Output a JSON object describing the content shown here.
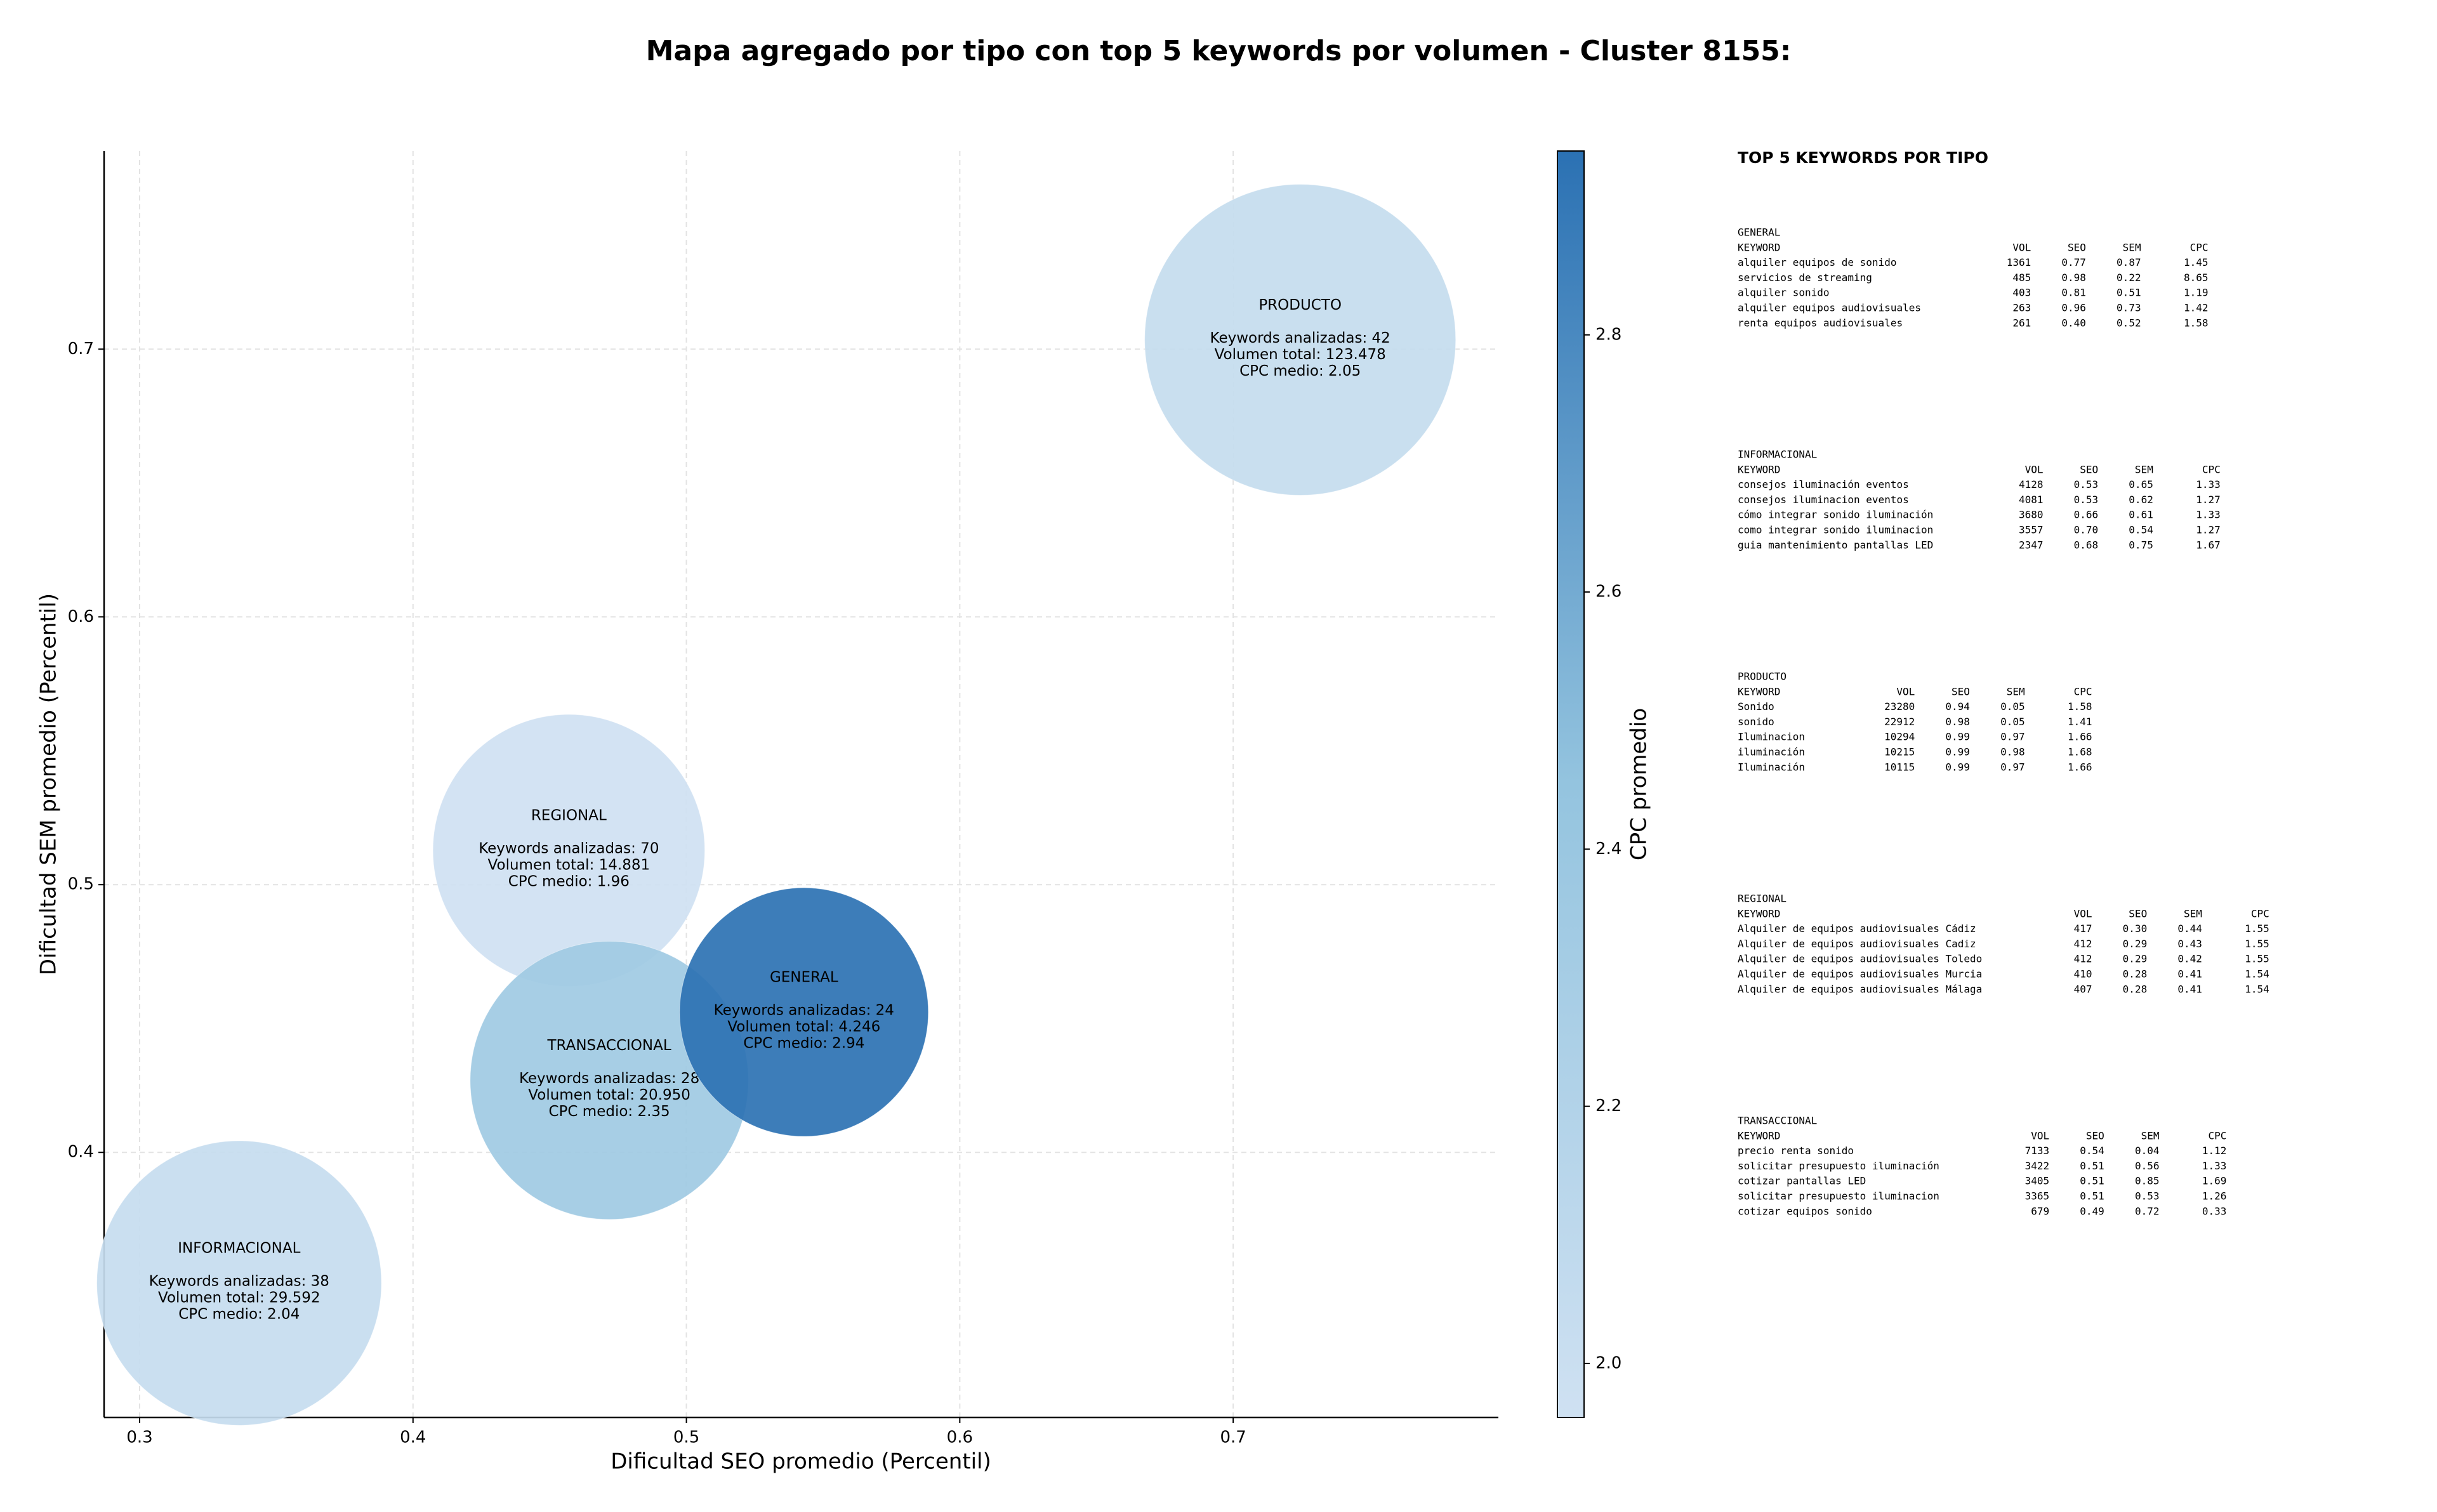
{
  "chart_data": {
    "type": "bubble",
    "title": "Mapa agregado por tipo con top 5 keywords por volumen - Cluster 8155:",
    "x_label": "Dificultad SEO promedio (Percentil)",
    "y_label": "Dificultad SEM promedio (Percentil)",
    "colorbar_label": "CPC promedio",
    "xlim": [
      0.287,
      0.797
    ],
    "xticks": [
      0.3,
      0.4,
      0.5,
      0.6,
      0.7
    ],
    "ylim": [
      0.301,
      0.774
    ],
    "yticks": [
      0.4,
      0.5,
      0.6,
      0.7
    ],
    "clim": [
      1.958,
      2.943
    ],
    "cticks": [
      {
        "value": 2,
        "label": "2.0"
      },
      2.2,
      2.4,
      2.6,
      2.8
    ],
    "colormap": [
      "#cfe1f2",
      "#94c4df",
      "#2b71b3"
    ],
    "grid": true,
    "points": [
      {
        "name": "INFORMACIONAL",
        "x": 0.3364,
        "y": 0.3512,
        "volume": 29592,
        "cpc": 2.04,
        "annotation": [
          "Keywords analizadas: 38",
          "Volumen total: 29.592",
          "CPC medio: 2.04"
        ]
      },
      {
        "name": "PRODUCTO",
        "x": 0.7245,
        "y": 0.7035,
        "volume": 123478,
        "cpc": 2.05,
        "annotation": [
          "Keywords analizadas: 42",
          "Volumen total: 123.478",
          "CPC medio: 2.05"
        ]
      },
      {
        "name": "REGIONAL",
        "x": 0.457,
        "y": 0.5128,
        "volume": 14881,
        "cpc": 1.96,
        "annotation": [
          "Keywords analizadas: 70",
          "Volumen total: 14.881",
          "CPC medio: 1.96"
        ]
      },
      {
        "name": "TRANSACCIONAL",
        "x": 0.4718,
        "y": 0.4269,
        "volume": 20950,
        "cpc": 2.35,
        "annotation": [
          "Keywords analizadas: 28",
          "Volumen total: 20.950",
          "CPC medio: 2.35"
        ]
      },
      {
        "name": "GENERAL",
        "x": 0.543,
        "y": 0.4524,
        "volume": 4246,
        "cpc": 2.94,
        "annotation": [
          "Keywords analizadas: 24",
          "Volumen total: 4.246",
          "CPC medio: 2.94"
        ]
      }
    ]
  },
  "side_panel": {
    "title": "TOP 5 KEYWORDS POR TIPO",
    "sections": [
      {
        "name": "GENERAL",
        "columns": [
          "KEYWORD",
          "VOL",
          "SEO",
          "SEM",
          "CPC"
        ],
        "rows": [
          [
            "alquiler equipos de sonido",
            "1361",
            "0.77",
            "0.87",
            "1.45"
          ],
          [
            "servicios de streaming",
            "485",
            "0.98",
            "0.22",
            "8.65"
          ],
          [
            "alquiler sonido",
            "403",
            "0.81",
            "0.51",
            "1.19"
          ],
          [
            "alquiler equipos audiovisuales",
            "263",
            "0.96",
            "0.73",
            "1.42"
          ],
          [
            "renta equipos audiovisuales",
            "261",
            "0.40",
            "0.52",
            "1.58"
          ]
        ]
      },
      {
        "name": "INFORMACIONAL",
        "columns": [
          "KEYWORD",
          "VOL",
          "SEO",
          "SEM",
          "CPC"
        ],
        "rows": [
          [
            "consejos iluminación eventos",
            "4128",
            "0.53",
            "0.65",
            "1.33"
          ],
          [
            "consejos iluminacion eventos",
            "4081",
            "0.53",
            "0.62",
            "1.27"
          ],
          [
            "cómo integrar sonido iluminación",
            "3680",
            "0.66",
            "0.61",
            "1.33"
          ],
          [
            "como integrar sonido iluminacion",
            "3557",
            "0.70",
            "0.54",
            "1.27"
          ],
          [
            "guia mantenimiento pantallas LED",
            "2347",
            "0.68",
            "0.75",
            "1.67"
          ]
        ]
      },
      {
        "name": "PRODUCTO",
        "columns": [
          "KEYWORD",
          "VOL",
          "SEO",
          "SEM",
          "CPC"
        ],
        "rows": [
          [
            "Sonido",
            "23280",
            "0.94",
            "0.05",
            "1.58"
          ],
          [
            "sonido",
            "22912",
            "0.98",
            "0.05",
            "1.41"
          ],
          [
            "Iluminacion",
            "10294",
            "0.99",
            "0.97",
            "1.66"
          ],
          [
            "iluminación",
            "10215",
            "0.99",
            "0.98",
            "1.68"
          ],
          [
            "Iluminación",
            "10115",
            "0.99",
            "0.97",
            "1.66"
          ]
        ]
      },
      {
        "name": "REGIONAL",
        "columns": [
          "KEYWORD",
          "VOL",
          "SEO",
          "SEM",
          "CPC"
        ],
        "rows": [
          [
            "Alquiler de equipos audiovisuales Cádiz",
            "417",
            "0.30",
            "0.44",
            "1.55"
          ],
          [
            "Alquiler de equipos audiovisuales Cadiz",
            "412",
            "0.29",
            "0.43",
            "1.55"
          ],
          [
            "Alquiler de equipos audiovisuales Toledo",
            "412",
            "0.29",
            "0.42",
            "1.55"
          ],
          [
            "Alquiler de equipos audiovisuales Murcia",
            "410",
            "0.28",
            "0.41",
            "1.54"
          ],
          [
            "Alquiler de equipos audiovisuales Málaga",
            "407",
            "0.28",
            "0.41",
            "1.54"
          ]
        ]
      },
      {
        "name": "TRANSACCIONAL",
        "columns": [
          "KEYWORD",
          "VOL",
          "SEO",
          "SEM",
          "CPC"
        ],
        "rows": [
          [
            "precio renta sonido",
            "7133",
            "0.54",
            "0.04",
            "1.12"
          ],
          [
            "solicitar presupuesto iluminación",
            "3422",
            "0.51",
            "0.56",
            "1.33"
          ],
          [
            "cotizar pantallas LED",
            "3405",
            "0.51",
            "0.85",
            "1.69"
          ],
          [
            "solicitar presupuesto iluminacion",
            "3365",
            "0.51",
            "0.53",
            "1.26"
          ],
          [
            "cotizar equipos sonido",
            "679",
            "0.49",
            "0.72",
            "0.33"
          ]
        ]
      }
    ]
  }
}
